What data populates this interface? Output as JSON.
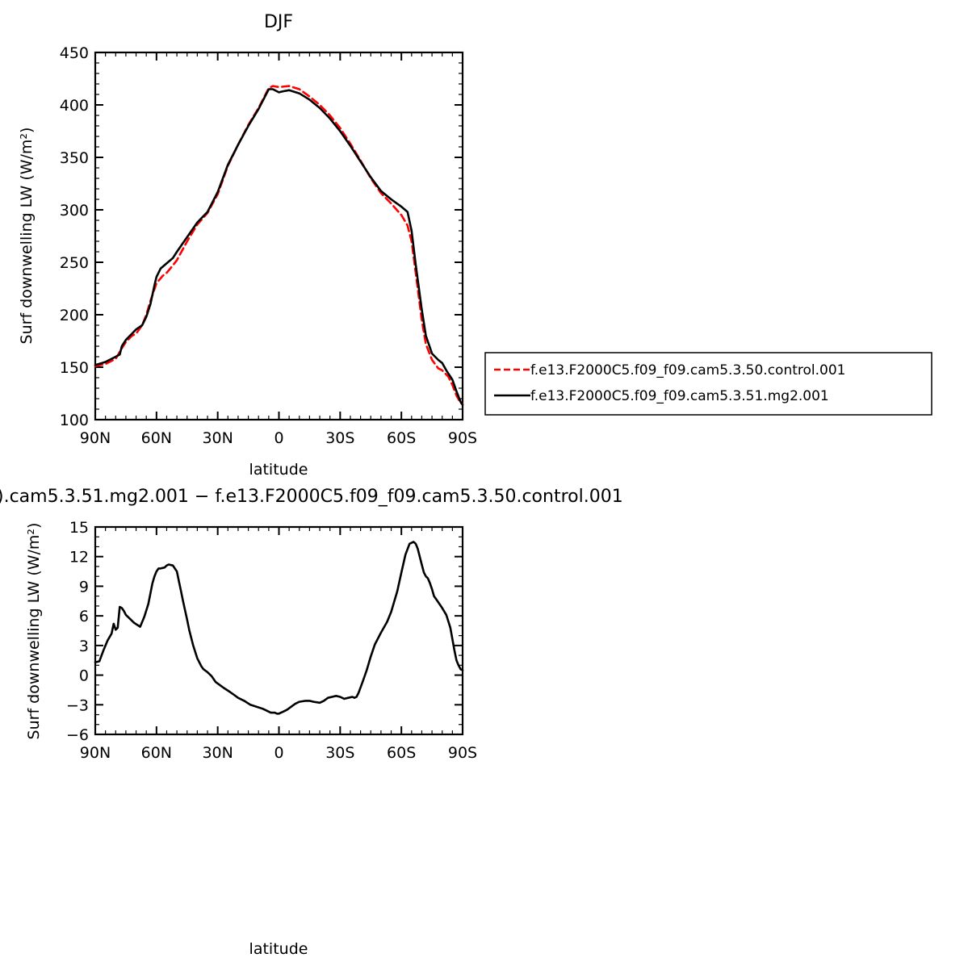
{
  "chart_data": [
    {
      "type": "line",
      "title": "DJF",
      "xlabel": "latitude",
      "ylabel": "Surf downwelling LW (W/m²)",
      "xlim": [
        -90,
        90
      ],
      "ylim": [
        100,
        450
      ],
      "xticks": [
        -90,
        -60,
        -30,
        0,
        30,
        60,
        90
      ],
      "xtick_labels": [
        "90N",
        "60N",
        "30N",
        "0",
        "30S",
        "60S",
        "90S"
      ],
      "yticks": [
        100,
        150,
        200,
        250,
        300,
        350,
        400,
        450
      ],
      "ytick_labels": [
        "100",
        "150",
        "200",
        "250",
        "300",
        "350",
        "400",
        "450"
      ],
      "legend_position": "right",
      "series": [
        {
          "name": "f.e13.F2000C5.f09_f09.cam5.3.50.control.001",
          "color": "#ff0000",
          "dash": "dashed",
          "x": [
            -90,
            -85,
            -80,
            -77,
            -75,
            -72,
            -70,
            -67,
            -65,
            -63,
            -60,
            -57,
            -55,
            -52,
            -50,
            -45,
            -40,
            -35,
            -30,
            -25,
            -20,
            -15,
            -10,
            -5,
            -3,
            0,
            5,
            10,
            15,
            20,
            25,
            30,
            35,
            40,
            45,
            50,
            55,
            60,
            63,
            65,
            67,
            70,
            72,
            75,
            78,
            80,
            83,
            85,
            87,
            89,
            90
          ],
          "y": [
            151,
            153,
            158,
            168,
            174,
            180,
            182,
            190,
            200,
            213,
            230,
            237,
            240,
            247,
            252,
            270,
            286,
            297,
            315,
            342,
            362,
            381,
            397,
            416,
            418,
            417,
            418,
            415,
            408,
            400,
            390,
            378,
            363,
            347,
            330,
            316,
            306,
            295,
            285,
            270,
            240,
            195,
            172,
            157,
            149,
            147,
            141,
            133,
            123,
            116,
            115
          ]
        },
        {
          "name": "f.e13.F2000C5.f09_f09.cam5.3.51.mg2.001",
          "color": "#000000",
          "dash": "solid",
          "x": [
            -90,
            -85,
            -82,
            -80,
            -78,
            -77,
            -75,
            -72,
            -70,
            -67,
            -65,
            -63,
            -61,
            -60,
            -58,
            -55,
            -52,
            -50,
            -45,
            -40,
            -35,
            -30,
            -25,
            -20,
            -15,
            -10,
            -5,
            -3,
            0,
            2,
            5,
            10,
            15,
            20,
            25,
            30,
            35,
            40,
            45,
            50,
            55,
            60,
            63,
            65,
            67,
            70,
            72,
            75,
            78,
            80,
            82,
            85,
            87,
            89,
            90
          ],
          "y": [
            152,
            155,
            158,
            160,
            162,
            170,
            176,
            182,
            186,
            190,
            198,
            210,
            228,
            236,
            244,
            249,
            254,
            260,
            274,
            288,
            298,
            317,
            343,
            362,
            380,
            396,
            415,
            415,
            412,
            413,
            414,
            411,
            405,
            397,
            387,
            375,
            361,
            346,
            331,
            318,
            310,
            303,
            298,
            280,
            248,
            205,
            180,
            163,
            157,
            154,
            147,
            138,
            127,
            117,
            114
          ]
        }
      ]
    },
    {
      "type": "line",
      "title": ").cam5.3.51.mg2.001 − f.e13.F2000C5.f09_f09.cam5.3.50.control.001",
      "xlabel": "latitude",
      "ylabel": "Surf downwelling LW (W/m²)",
      "xlim": [
        -90,
        90
      ],
      "ylim": [
        -6,
        15
      ],
      "xticks": [
        -90,
        -60,
        -30,
        0,
        30,
        60,
        90
      ],
      "xtick_labels": [
        "90N",
        "60N",
        "30N",
        "0",
        "30S",
        "60S",
        "90S"
      ],
      "yticks": [
        -6,
        -3,
        0,
        3,
        6,
        9,
        12,
        15
      ],
      "ytick_labels": [
        "−6",
        "−3",
        "0",
        "3",
        "6",
        "9",
        "12",
        "15"
      ],
      "series": [
        {
          "color": "#000000",
          "dash": "solid",
          "x": [
            -90,
            -88,
            -86,
            -84,
            -82,
            -81,
            -80,
            -79,
            -78,
            -77,
            -76,
            -75,
            -73,
            -71,
            -68,
            -66,
            -64,
            -62,
            -61,
            -60,
            -59,
            -58,
            -56,
            -55,
            -54,
            -52,
            -50,
            -49,
            -48,
            -47,
            -45,
            -44,
            -42,
            -40,
            -38,
            -37,
            -35,
            -33,
            -31,
            -29,
            -27,
            -24,
            -22,
            -20,
            -17,
            -14,
            -11,
            -8,
            -6,
            -4,
            -2,
            -1,
            0,
            1,
            2,
            4,
            6,
            8,
            10,
            13,
            15,
            17,
            20,
            22,
            24,
            26,
            28,
            30,
            32,
            34,
            36,
            37,
            38,
            39,
            41,
            43,
            45,
            47,
            50,
            53,
            55,
            58,
            60,
            62,
            64,
            66,
            67,
            68,
            69,
            70,
            71,
            72,
            73,
            74,
            75,
            76,
            77,
            78,
            80,
            82,
            84,
            86,
            87,
            88,
            89,
            90
          ],
          "y": [
            1.3,
            1.4,
            2.5,
            3.5,
            4.2,
            5.2,
            4.6,
            4.8,
            6.9,
            6.8,
            6.5,
            6.1,
            5.7,
            5.3,
            4.9,
            5.9,
            7.2,
            9.3,
            10.0,
            10.5,
            10.8,
            10.8,
            10.9,
            11.1,
            11.2,
            11.1,
            10.5,
            9.5,
            8.5,
            7.5,
            5.6,
            4.6,
            3.0,
            1.7,
            0.9,
            0.6,
            0.3,
            -0.1,
            -0.7,
            -1.0,
            -1.3,
            -1.7,
            -2.0,
            -2.3,
            -2.6,
            -3.0,
            -3.2,
            -3.4,
            -3.6,
            -3.8,
            -3.8,
            -3.9,
            -3.9,
            -3.8,
            -3.7,
            -3.5,
            -3.2,
            -2.9,
            -2.7,
            -2.6,
            -2.6,
            -2.7,
            -2.8,
            -2.6,
            -2.3,
            -2.2,
            -2.1,
            -2.2,
            -2.4,
            -2.3,
            -2.2,
            -2.3,
            -2.2,
            -1.8,
            -0.7,
            0.5,
            1.9,
            3.1,
            4.3,
            5.4,
            6.4,
            8.5,
            10.4,
            12.2,
            13.3,
            13.5,
            13.3,
            12.8,
            12.0,
            11.2,
            10.4,
            10.0,
            9.8,
            9.3,
            8.7,
            8.0,
            7.7,
            7.4,
            6.8,
            6.1,
            4.8,
            2.5,
            1.5,
            1.0,
            0.6,
            0.5
          ]
        }
      ]
    }
  ]
}
